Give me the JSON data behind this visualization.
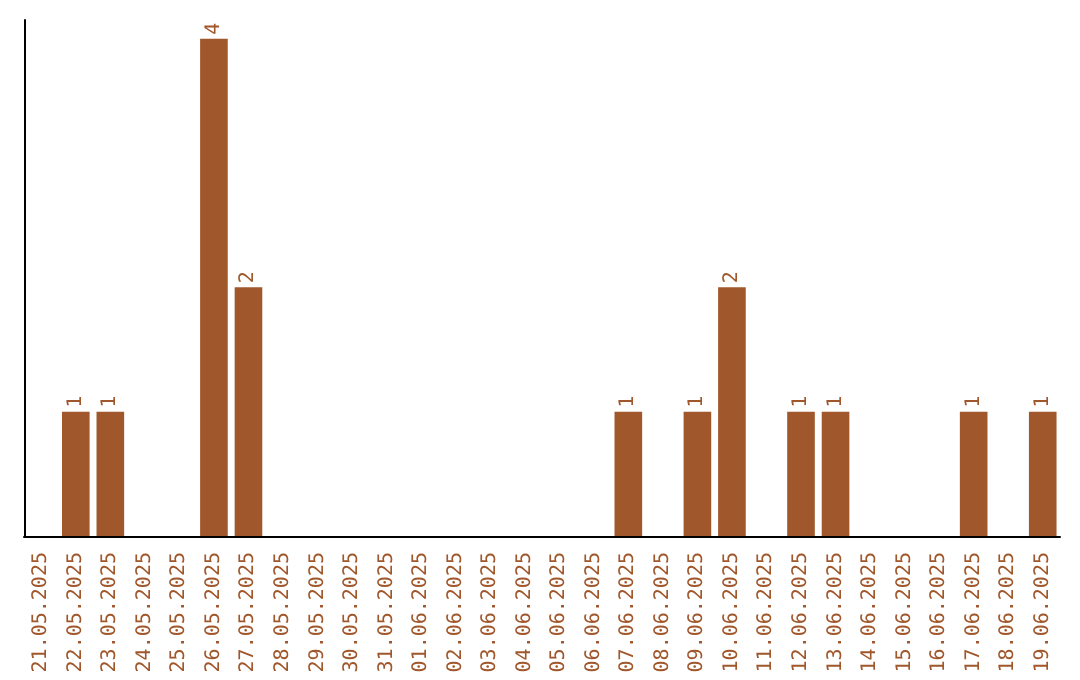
{
  "chart_data": {
    "type": "bar",
    "categories": [
      "21.05.2025",
      "22.05.2025",
      "23.05.2025",
      "24.05.2025",
      "25.05.2025",
      "26.05.2025",
      "27.05.2025",
      "28.05.2025",
      "29.05.2025",
      "30.05.2025",
      "31.05.2025",
      "01.06.2025",
      "02.06.2025",
      "03.06.2025",
      "04.06.2025",
      "05.06.2025",
      "06.06.2025",
      "07.06.2025",
      "08.06.2025",
      "09.06.2025",
      "10.06.2025",
      "11.06.2025",
      "12.06.2025",
      "13.06.2025",
      "14.06.2025",
      "15.06.2025",
      "16.06.2025",
      "17.06.2025",
      "18.06.2025",
      "19.06.2025"
    ],
    "values": [
      0,
      1,
      1,
      0,
      0,
      4,
      2,
      0,
      0,
      0,
      0,
      0,
      0,
      0,
      0,
      0,
      0,
      1,
      0,
      1,
      2,
      0,
      1,
      1,
      0,
      0,
      0,
      1,
      0,
      1
    ],
    "value_labels": [
      null,
      "1",
      "1",
      null,
      null,
      "4",
      "2",
      null,
      null,
      null,
      null,
      null,
      null,
      null,
      null,
      null,
      null,
      "1",
      null,
      "1",
      "2",
      null,
      "1",
      "1",
      null,
      null,
      null,
      "1",
      null,
      "1"
    ],
    "color": "#a0572b",
    "ylim": [
      0,
      4.15
    ],
    "tick_labels": "x",
    "grid": false
  }
}
